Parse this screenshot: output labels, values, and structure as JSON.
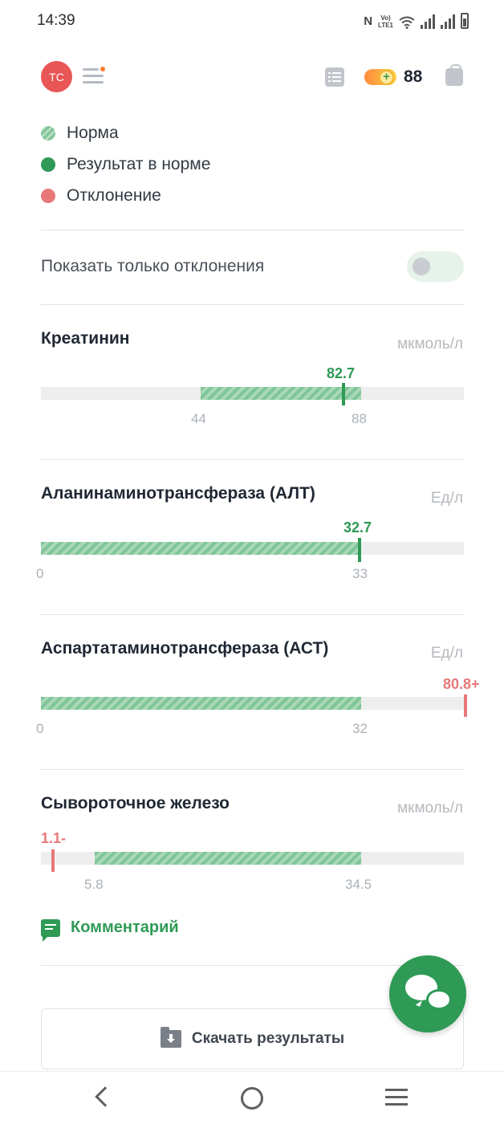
{
  "status_bar": {
    "time": "14:39",
    "nfc": "N",
    "lte": [
      "Vo)",
      "LTE1"
    ]
  },
  "header": {
    "avatar_initials": "ТС",
    "coins": "88"
  },
  "legend": [
    {
      "label": "Норма",
      "kind": "norm"
    },
    {
      "label": "Результат в норме",
      "kind": "ok"
    },
    {
      "label": "Отклонение",
      "kind": "deviation"
    }
  ],
  "toggle": {
    "label": "Показать только отклонения",
    "on": false
  },
  "analytes": [
    {
      "name": "Креатинин",
      "unit": "мкмоль/л",
      "value_label": "82.7",
      "status": "ok",
      "norm_min": "44",
      "norm_max": "88"
    },
    {
      "name": "Аланинаминотрансфераза (АЛТ)",
      "unit": "Ед/л",
      "value_label": "32.7",
      "status": "ok",
      "norm_min": "0",
      "norm_max": "33"
    },
    {
      "name": "Аспартатаминотрансфераза (АСТ)",
      "unit": "Ед/л",
      "value_label": "80.8+",
      "status": "deviation",
      "norm_min": "0",
      "norm_max": "32"
    },
    {
      "name": "Сывороточное железо",
      "unit": "мкмоль/л",
      "value_label": "1.1-",
      "status": "deviation",
      "norm_min": "5.8",
      "norm_max": "34.5"
    }
  ],
  "comment": {
    "label": "Комментарий"
  },
  "download": {
    "label": "Скачать результаты"
  },
  "colors": {
    "accent_green": "#2e9a55",
    "deviation_red": "#e87878",
    "avatar_red": "#e95656"
  },
  "icons": [
    "menu-icon",
    "list-icon",
    "coin-icon",
    "bag-icon",
    "comment-icon",
    "folder-download-icon",
    "chat-icon",
    "back-icon",
    "home-icon",
    "recent-apps-icon"
  ]
}
